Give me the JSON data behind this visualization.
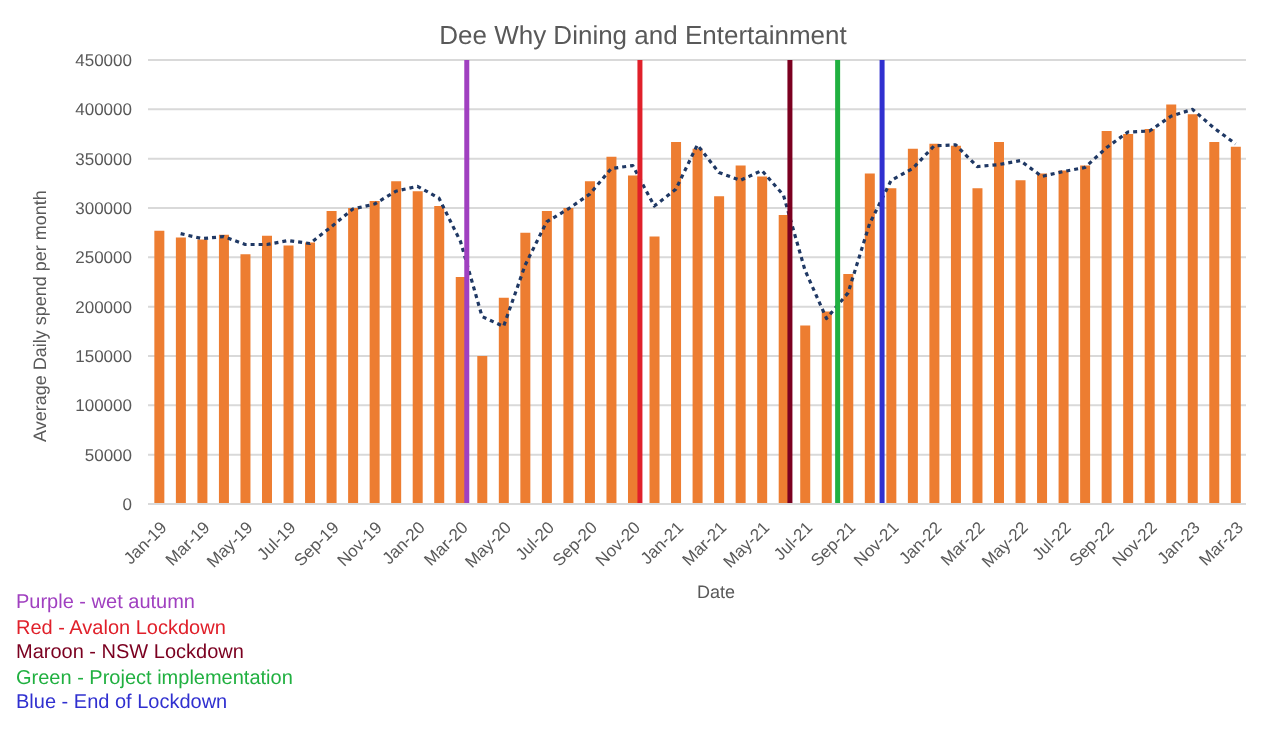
{
  "chart_data": {
    "type": "bar",
    "title": "Dee Why Dining and Entertainment",
    "xlabel": "Date",
    "ylabel": "Average Daily spend per month",
    "x": [
      "2019-01",
      "2019-02",
      "2019-03",
      "2019-04",
      "2019-05",
      "2019-06",
      "2019-07",
      "2019-08",
      "2019-09",
      "2019-10",
      "2019-11",
      "2019-12",
      "2020-01",
      "2020-02",
      "2020-03",
      "2020-04",
      "2020-05",
      "2020-06",
      "2020-07",
      "2020-08",
      "2020-09",
      "2020-10",
      "2020-11",
      "2020-12",
      "2021-01",
      "2021-02",
      "2021-03",
      "2021-04",
      "2021-05",
      "2021-06",
      "2021-07",
      "2021-08",
      "2021-09",
      "2021-10",
      "2021-11",
      "2021-12",
      "2022-01",
      "2022-02",
      "2022-03",
      "2022-04",
      "2022-05",
      "2022-06",
      "2022-07",
      "2022-08",
      "2022-09",
      "2022-10",
      "2022-11",
      "2022-12",
      "2023-01",
      "2023-02",
      "2023-03"
    ],
    "xlim": [
      "2018-12-16",
      "2023-03-16"
    ],
    "xticks": [
      {
        "value": "2019-01",
        "label": "Jan-19"
      },
      {
        "value": "2019-03",
        "label": "Mar-19"
      },
      {
        "value": "2019-05",
        "label": "May-19"
      },
      {
        "value": "2019-07",
        "label": "Jul-19"
      },
      {
        "value": "2019-09",
        "label": "Sep-19"
      },
      {
        "value": "2019-11",
        "label": "Nov-19"
      },
      {
        "value": "2020-01",
        "label": "Jan-20"
      },
      {
        "value": "2020-03",
        "label": "Mar-20"
      },
      {
        "value": "2020-05",
        "label": "May-20"
      },
      {
        "value": "2020-07",
        "label": "Jul-20"
      },
      {
        "value": "2020-09",
        "label": "Sep-20"
      },
      {
        "value": "2020-11",
        "label": "Nov-20"
      },
      {
        "value": "2021-01",
        "label": "Jan-21"
      },
      {
        "value": "2021-03",
        "label": "Mar-21"
      },
      {
        "value": "2021-05",
        "label": "May-21"
      },
      {
        "value": "2021-07",
        "label": "Jul-21"
      },
      {
        "value": "2021-09",
        "label": "Sep-21"
      },
      {
        "value": "2021-11",
        "label": "Nov-21"
      },
      {
        "value": "2022-01",
        "label": "Jan-22"
      },
      {
        "value": "2022-03",
        "label": "Mar-22"
      },
      {
        "value": "2022-05",
        "label": "May-22"
      },
      {
        "value": "2022-07",
        "label": "Jul-22"
      },
      {
        "value": "2022-09",
        "label": "Sep-22"
      },
      {
        "value": "2022-11",
        "label": "Nov-22"
      },
      {
        "value": "2023-01",
        "label": "Jan-23"
      },
      {
        "value": "2023-03",
        "label": "Mar-23"
      }
    ],
    "series": [
      {
        "color": "#ed7d31",
        "values": [
          277000,
          270000,
          268000,
          273000,
          253000,
          272000,
          262000,
          265000,
          297000,
          300000,
          307000,
          327000,
          317000,
          302000,
          230000,
          150000,
          209000,
          275000,
          297000,
          300000,
          327000,
          352000,
          333000,
          271000,
          367000,
          360000,
          312000,
          343000,
          332000,
          293000,
          181000,
          195000,
          233000,
          335000,
          320000,
          360000,
          365000,
          363000,
          320000,
          367000,
          328000,
          335000,
          338000,
          343000,
          378000,
          375000,
          380000,
          405000,
          395000,
          367000,
          362000
        ]
      },
      {
        "type": "line",
        "color": "#1f3864",
        "line_style": "dotted",
        "values": [
          null,
          274000,
          269000,
          271000,
          263000,
          263000,
          267000,
          264000,
          281000,
          299000,
          304000,
          317000,
          322000,
          310000,
          266000,
          190000,
          180000,
          242000,
          286000,
          299000,
          314000,
          340000,
          343000,
          302000,
          319000,
          364000,
          336000,
          328000,
          338000,
          313000,
          237000,
          188000,
          214000,
          284000,
          328000,
          340000,
          363000,
          364000,
          342000,
          344000,
          348000,
          332000,
          337000,
          341000,
          361000,
          377000,
          378000,
          393000,
          400000,
          381000,
          365000
        ]
      }
    ],
    "ylim": [
      0,
      450000
    ],
    "yticks": [
      0,
      50000,
      100000,
      150000,
      200000,
      250000,
      300000,
      350000,
      400000,
      450000
    ],
    "grid": "y",
    "legend": false,
    "ref_lines": [
      {
        "axis": "x",
        "value": "2020-03-10",
        "label": "Purple - wet autumn",
        "color": "#a040c0"
      },
      {
        "axis": "x",
        "value": "2020-11-11",
        "label": "Red - Avalon Lockdown",
        "color": "#e0202a"
      },
      {
        "axis": "x",
        "value": "2021-06-10",
        "label": "Maroon - NSW Lockdown",
        "color": "#7b0020"
      },
      {
        "axis": "x",
        "value": "2021-08-17",
        "label": "Green - Project implementation",
        "color": "#20b040"
      },
      {
        "axis": "x",
        "value": "2021-10-19",
        "label": "Blue - End of Lockdown",
        "color": "#3030d0"
      }
    ]
  }
}
